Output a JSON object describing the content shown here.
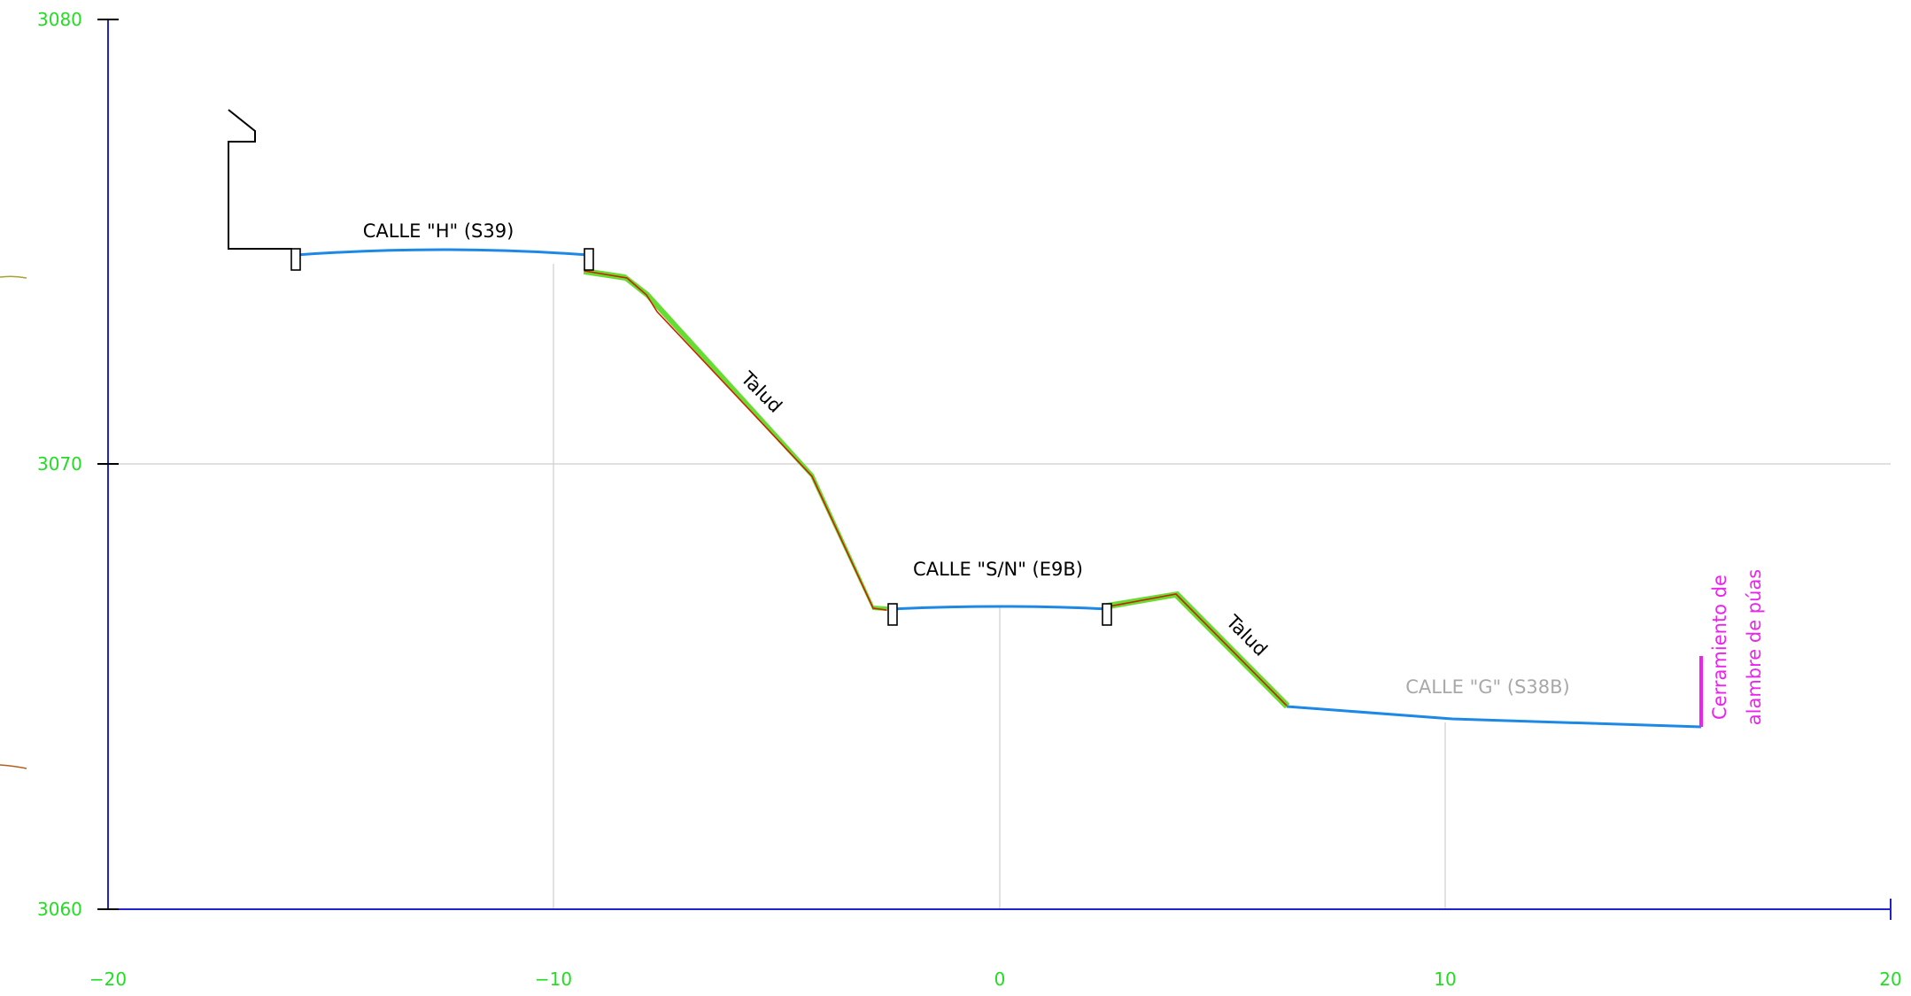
{
  "chart_data": {
    "type": "line",
    "title": "",
    "xlabel": "",
    "ylabel": "",
    "xlim": [
      -20,
      20
    ],
    "ylim": [
      3060,
      3080
    ],
    "x_ticks": [
      "−20",
      "−10",
      "0",
      "10",
      "20"
    ],
    "y_ticks": [
      "3060",
      "3070",
      "3080"
    ],
    "grid": true,
    "colors": {
      "axis": "#2222cc",
      "tick_text": "#22dd22",
      "grid": "#cfcfcf",
      "road": "#1e88e5",
      "slope_fill": "#66dd33",
      "terrain": "#cc2200",
      "fence": "#ee22ee",
      "outline": "#000000",
      "muted_label": "#a8a8a8"
    },
    "series": [
      {
        "label": "CALLE \"H\" (S39)",
        "role": "road",
        "x": [
          -15.8,
          -13.0,
          -10.5,
          -8.9
        ],
        "y": [
          3074.9,
          3075.1,
          3075.1,
          3074.9
        ]
      },
      {
        "label": "Talud",
        "role": "slope",
        "x": [
          -8.9,
          -8.4,
          -7.6,
          -4.2,
          -2.8
        ],
        "y": [
          3074.6,
          3074.4,
          3073.6,
          3069.7,
          3066.8
        ]
      },
      {
        "label": "CALLE \"S/N\" (E9B)",
        "role": "road",
        "x": [
          -2.5,
          0.0,
          2.5
        ],
        "y": [
          3066.8,
          3066.9,
          3066.8
        ]
      },
      {
        "label": "Talud",
        "role": "slope",
        "x": [
          2.5,
          4.0,
          6.5
        ],
        "y": [
          3066.9,
          3067.2,
          3064.6
        ]
      },
      {
        "label": "CALLE \"G\" (S38B)",
        "role": "road",
        "x": [
          6.5,
          10.0,
          15.5
        ],
        "y": [
          3064.6,
          3064.4,
          3064.2
        ]
      }
    ],
    "annotations": [
      {
        "text": "CALLE \"H\" (S39)",
        "color": "#000000"
      },
      {
        "text": "Talud",
        "color": "#000000"
      },
      {
        "text": "CALLE \"S/N\" (E9B)",
        "color": "#000000"
      },
      {
        "text": "Talud",
        "color": "#000000"
      },
      {
        "text": "CALLE \"G\" (S38B)",
        "color": "#a8a8a8"
      },
      {
        "text": "Cerramiento de",
        "color": "#ee22ee"
      },
      {
        "text": "alambre de púas",
        "color": "#ee22ee"
      }
    ]
  }
}
